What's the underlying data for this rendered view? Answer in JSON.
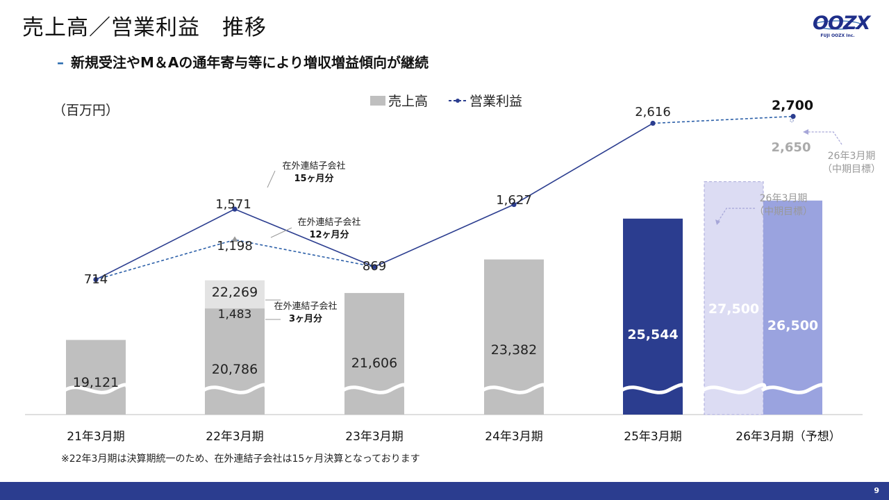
{
  "header": {
    "title": "売上高／営業利益　推移",
    "subtitle_dash": "–",
    "subtitle": "新規受注やM＆Aの通年寄与等により増収増益傾向が継続",
    "logo_text": "OOZX",
    "logo_subtext": "FUJI OOZX Inc."
  },
  "unit_label": "（百万円）",
  "legend": {
    "bar": "売上高",
    "line": "営業利益"
  },
  "footnote": "※22年3月期は決算期統一のため、在外連結子会社は15ヶ月決算となっております",
  "page_number": "9",
  "colors": {
    "bar_gray": "#bfbfbf",
    "bar_gray_top": "#e3e3e3",
    "bar_actual_25": "#2b3d8f",
    "bar_plan_26": "#dcdcf3",
    "bar_forecast_26": "#9aa3df",
    "line_solid": "#2b3d8f",
    "line_dashed": "#2b5fa8",
    "annotation_gray": "#999999",
    "footer": "#2b3d8f"
  },
  "chart_data": {
    "type": "bar",
    "categories": [
      "21年3月期",
      "22年3月期",
      "23年3月期",
      "24年3月期",
      "25年3月期",
      "26年3月期（予想）"
    ],
    "series": [
      {
        "name": "売上高",
        "values": [
          19121,
          22269,
          21606,
          23382,
          25544,
          26500
        ],
        "labels": [
          "19,121",
          "22,269",
          "21,606",
          "23,382",
          "25,544",
          "26,500"
        ],
        "breakdown_22": {
          "base": 20786,
          "base_label": "20,786",
          "overseas_extra": 1483,
          "overseas_extra_label": "1,483"
        },
        "plan_26": {
          "value": 27500,
          "label": "27,500"
        }
      },
      {
        "name": "営業利益",
        "type": "line",
        "values": [
          714,
          1571,
          869,
          1627,
          2616,
          2650
        ],
        "labels": [
          "714",
          "1,571",
          "869",
          "1,627",
          "2,616",
          "2,650"
        ],
        "alt_22": {
          "value": 1198,
          "label": "1,198"
        },
        "plan_26": {
          "value": 2700,
          "label": "2,700"
        }
      }
    ],
    "axis_break": true
  },
  "annotations": {
    "overseas_15_line1": "在外連結子会社",
    "overseas_15_line2": "15ヶ月分",
    "overseas_12_line1": "在外連結子会社",
    "overseas_12_line2": "12ヶ月分",
    "overseas_3_line1": "在外連結子会社",
    "overseas_3_line2": "3ヶ月分",
    "plan_bar_line1": "26年3月期",
    "plan_bar_line2": "（中期目標）",
    "plan_profit_line1": "26年3月期",
    "plan_profit_line2": "（中期目標）"
  }
}
